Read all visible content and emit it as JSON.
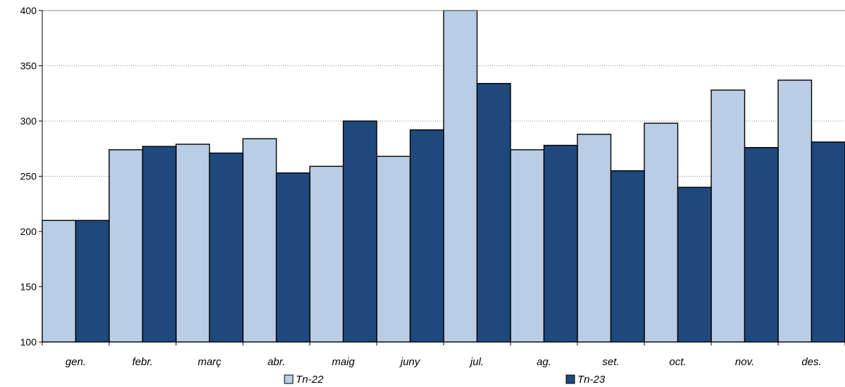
{
  "chart_data": {
    "type": "bar",
    "title": "",
    "xlabel": "",
    "ylabel": "",
    "ylim": [
      100,
      400
    ],
    "yticks": [
      100,
      150,
      200,
      250,
      300,
      350,
      400
    ],
    "grid": "horizontal-dotted",
    "legend_position": "bottom",
    "categories": [
      "gen.",
      "febr.",
      "març",
      "abr.",
      "maig",
      "juny",
      "jul.",
      "ag.",
      "set.",
      "oct.",
      "nov.",
      "des."
    ],
    "series": [
      {
        "name": "Tn-22",
        "color": "#b9cde5",
        "values": [
          210,
          274,
          279,
          284,
          259,
          268,
          400,
          274,
          288,
          298,
          328,
          337
        ]
      },
      {
        "name": "Tn-23",
        "color": "#1f497d",
        "values": [
          210,
          277,
          271,
          253,
          300,
          292,
          334,
          278,
          255,
          240,
          276,
          281
        ]
      }
    ]
  }
}
